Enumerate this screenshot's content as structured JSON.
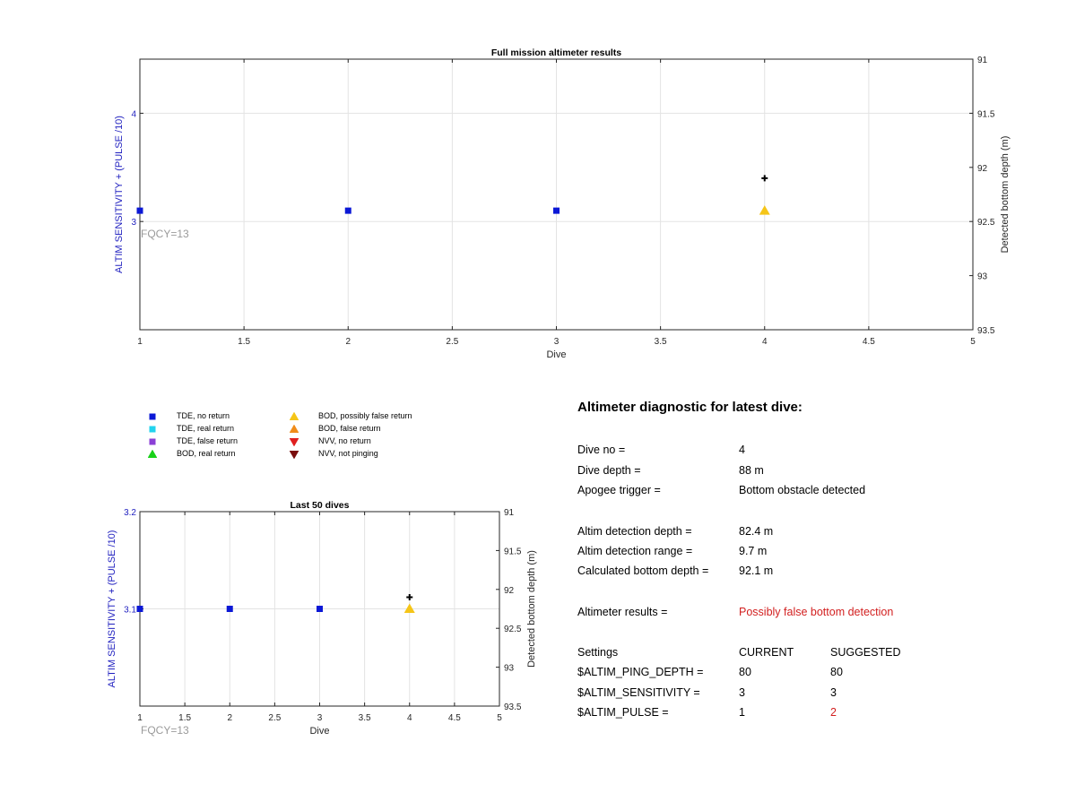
{
  "colors": {
    "tde_no_return": "#0b18d6",
    "tde_real_return": "#22d3ee",
    "tde_false_return": "#8b3fd6",
    "bod_real_return": "#19d119",
    "bod_possibly_false": "#f5c518",
    "bod_false_return": "#f08c1a",
    "nvv_no_return": "#e01f1f",
    "nvv_not_pinging": "#7a0d0d",
    "left_axis_text": "#1f1fbf",
    "fqcy_text": "#9a9a9a",
    "warning_text": "#d21f1f"
  },
  "legend": {
    "items": [
      {
        "label": "TDE, no return",
        "marker": "square",
        "color_key": "tde_no_return"
      },
      {
        "label": "TDE, real return",
        "marker": "square",
        "color_key": "tde_real_return"
      },
      {
        "label": "TDE, false return",
        "marker": "square",
        "color_key": "tde_false_return"
      },
      {
        "label": "BOD, real return",
        "marker": "triangle-up",
        "color_key": "bod_real_return"
      },
      {
        "label": "BOD, possibly false return",
        "marker": "triangle-up",
        "color_key": "bod_possibly_false"
      },
      {
        "label": "BOD, false return",
        "marker": "triangle-up",
        "color_key": "bod_false_return"
      },
      {
        "label": "NVV, no return",
        "marker": "triangle-down",
        "color_key": "nvv_no_return"
      },
      {
        "label": "NVV, not pinging",
        "marker": "triangle-down",
        "color_key": "nvv_not_pinging"
      }
    ]
  },
  "chart_data": [
    {
      "type": "scatter",
      "title": "Full mission altimeter results",
      "xlabel": "Dive",
      "ylabel": "ALTIM SENSITIVITY + (PULSE /10)",
      "y2label": "Detected bottom depth (m)",
      "xlim": [
        1,
        5
      ],
      "ylim": [
        2,
        4.5
      ],
      "y2lim": [
        91,
        93.5
      ],
      "y2_reversed": true,
      "grid": true,
      "x_ticks": [
        "1",
        "1.5",
        "2",
        "2.5",
        "3",
        "3.5",
        "4",
        "4.5",
        "5"
      ],
      "y_ticks": [
        "3",
        "4"
      ],
      "y2_ticks": [
        "91",
        "91.5",
        "92",
        "92.5",
        "93",
        "93.5"
      ],
      "annotation": "FQCY=13",
      "points": [
        {
          "x": 1,
          "y": 3.1,
          "category": "TDE, no return"
        },
        {
          "x": 2,
          "y": 3.1,
          "category": "TDE, no return"
        },
        {
          "x": 3,
          "y": 3.1,
          "category": "TDE, no return"
        },
        {
          "x": 4,
          "y": 3.1,
          "category": "BOD, possibly false return"
        }
      ],
      "bottom_depth_points": [
        {
          "x": 4,
          "y2": 92.1
        }
      ]
    },
    {
      "type": "scatter",
      "title": "Last 50 dives",
      "xlabel": "Dive",
      "ylabel": "ALTIM SENSITIVITY + (PULSE /10)",
      "y2label": "Detected bottom depth (m)",
      "xlim": [
        1,
        5
      ],
      "ylim": [
        3.0,
        3.2
      ],
      "y2lim": [
        91,
        93.5
      ],
      "y2_reversed": true,
      "grid": true,
      "x_ticks": [
        "1",
        "1.5",
        "2",
        "2.5",
        "3",
        "3.5",
        "4",
        "4.5",
        "5"
      ],
      "y_ticks": [
        "3.1",
        "3.2"
      ],
      "y2_ticks": [
        "91",
        "91.5",
        "92",
        "92.5",
        "93",
        "93.5"
      ],
      "annotation": "FQCY=13",
      "points": [
        {
          "x": 1,
          "y": 3.1,
          "category": "TDE, no return"
        },
        {
          "x": 2,
          "y": 3.1,
          "category": "TDE, no return"
        },
        {
          "x": 3,
          "y": 3.1,
          "category": "TDE, no return"
        },
        {
          "x": 4,
          "y": 3.1,
          "category": "BOD, possibly false return"
        }
      ],
      "bottom_depth_points": [
        {
          "x": 4,
          "y2": 92.1
        }
      ]
    }
  ],
  "diagnostic": {
    "title": "Altimeter diagnostic for latest dive:",
    "rows": [
      {
        "label": "Dive no =",
        "value": "4"
      },
      {
        "label": "Dive depth =",
        "value": "88 m"
      },
      {
        "label": "Apogee trigger =",
        "value": "Bottom obstacle detected"
      },
      {
        "label": "Altim detection depth =",
        "value": "82.4 m"
      },
      {
        "label": "Altim detection range =",
        "value": "9.7 m"
      },
      {
        "label": "Calculated bottom depth =",
        "value": "92.1 m"
      },
      {
        "label": "Altimeter results =",
        "value": "Possibly false bottom detection"
      }
    ],
    "settings_header": {
      "label": "Settings",
      "current": "CURRENT",
      "suggested": "SUGGESTED"
    },
    "settings": [
      {
        "label": "$ALTIM_PING_DEPTH =",
        "current": "80",
        "suggested": "80"
      },
      {
        "label": "$ALTIM_SENSITIVITY =",
        "current": "3",
        "suggested": "3"
      },
      {
        "label": "$ALTIM_PULSE =",
        "current": "1",
        "suggested": "2"
      }
    ]
  }
}
